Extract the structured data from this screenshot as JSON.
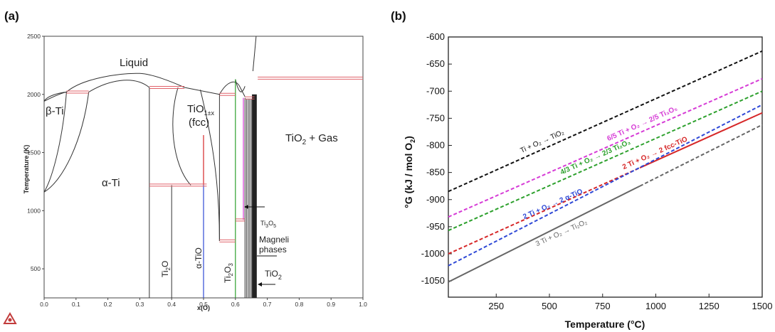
{
  "panel_a": {
    "label": "(a)",
    "x_title": "x(O)",
    "y_title": "Temperature (K)",
    "colors": {
      "boundary": "#333333",
      "invariant": "#e0626a",
      "ti3o5": "#d63bd6",
      "tio2_line": "#2ca02c",
      "tio_line": "#2f49d6",
      "fcc_line": "#d62728"
    },
    "labels": {
      "liquid": "Liquid",
      "beta_ti": "β-Ti",
      "alpha_ti": "α-Ti",
      "tio_fcc_main": "TiO",
      "tio_fcc_sub": "1±x",
      "tio_fcc_note": "(fcc)",
      "tio2_gas_a": "TiO",
      "tio2_gas_b": "2",
      "tio2_gas_c": " + Gas",
      "ti2o_a": "Ti",
      "ti2o_b": "2",
      "ti2o_c": "O",
      "alpha_tio": "α-TiO",
      "ti2o3_a": "Ti",
      "ti2o3_b": "2",
      "ti2o3_c": "O",
      "ti2o3_d": "3",
      "ti3o5_a": "Ti",
      "ti3o5_b": "3",
      "ti3o5_c": "O",
      "ti3o5_d": "5",
      "magneli_1": "Magneli",
      "magneli_2": "phases",
      "tio2_a": "TiO",
      "tio2_b": "2"
    }
  },
  "panel_b": {
    "label": "(b)",
    "x_title": "Temperature (°C)",
    "y_title_a": "°G (kJ / mol O",
    "y_title_b": "2",
    "y_title_c": ")",
    "line_labels": [
      {
        "name": "ti_tio2",
        "text": "Ti + O₂ → TiO₂",
        "color": "#111111"
      },
      {
        "name": "ti3o5",
        "text": "6/5 Ti + O₂ → 2/5 Ti₃O₅",
        "color": "#d63bd6"
      },
      {
        "name": "ti2o3",
        "text": "4/3 Ti + O₂ → 2/3 Ti₂O₃",
        "color": "#2ca02c"
      },
      {
        "name": "fcc_tio",
        "text": "2 Ti + O₂ → 2 fcc-TiO",
        "color": "#d62728"
      },
      {
        "name": "alpha_tio",
        "text": "2 Ti + O₂ → 2 α-TiO",
        "color": "#2f49d6"
      },
      {
        "name": "ti2o",
        "text": "3 Ti + O₂ → Ti₂O₂",
        "color": "#666666"
      }
    ]
  },
  "chart_data": [
    {
      "type": "line",
      "title": "",
      "xlabel": "x(O)",
      "ylabel": "Temperature (K)",
      "xlim": [
        0.0,
        1.0
      ],
      "ylim": [
        250,
        2500
      ],
      "x_ticks": [
        "0.0",
        "0.1",
        "0.2",
        "0.3",
        "0.4",
        "0.5",
        "0.6",
        "0.7",
        "0.8",
        "0.9",
        "1.0"
      ],
      "y_ticks": [
        "500",
        "1000",
        "1500",
        "2000",
        "2500"
      ],
      "series": [
        {
          "name": "liquidus",
          "x": [
            0.0,
            0.07,
            0.15,
            0.3,
            0.33,
            0.42,
            0.55,
            0.58,
            0.6,
            0.62,
            0.64
          ],
          "y": [
            1941,
            2020,
            2100,
            2180,
            2150,
            2050,
            2000,
            2110,
            2130,
            2050,
            1990
          ]
        },
        {
          "name": "beta_alpha_boundary",
          "x": [
            0.0,
            0.02,
            0.05,
            0.08,
            0.14
          ],
          "y": [
            1160,
            1250,
            1500,
            1800,
            2020
          ]
        },
        {
          "name": "invariant_2020",
          "x": [
            0.07,
            0.14
          ],
          "y": [
            2020,
            2020
          ]
        },
        {
          "name": "invariant_2060",
          "x": [
            0.33,
            0.44
          ],
          "y": [
            2060,
            2060
          ]
        },
        {
          "name": "invariant_1220",
          "x": [
            0.33,
            0.51
          ],
          "y": [
            1220,
            1220
          ]
        },
        {
          "name": "invariant_740",
          "x": [
            0.55,
            0.6
          ],
          "y": [
            740,
            740
          ]
        },
        {
          "name": "invariant_2140",
          "x": [
            0.67,
            1.0
          ],
          "y": [
            2140,
            2140
          ]
        },
        {
          "name": "invariant_2000",
          "x": [
            0.55,
            0.6
          ],
          "y": [
            2000,
            2000
          ]
        },
        {
          "name": "invariant_1970",
          "x": [
            0.63,
            0.66
          ],
          "y": [
            1970,
            1970
          ]
        },
        {
          "name": "invariant_920",
          "x": [
            0.6,
            0.63
          ],
          "y": [
            920,
            920
          ]
        }
      ]
    },
    {
      "type": "line",
      "title": "",
      "xlabel": "Temperature (°C)",
      "ylabel": "°G (kJ / mol O2)",
      "xlim": [
        25,
        1500
      ],
      "ylim": [
        -1080,
        -600
      ],
      "x_ticks": [
        "250",
        "500",
        "750",
        "1000",
        "1250",
        "1500"
      ],
      "y_ticks": [
        "-600",
        "-650",
        "-700",
        "-750",
        "-800",
        "-850",
        "-900",
        "-950",
        "-1000",
        "-1050"
      ],
      "series": [
        {
          "name": "Ti + O₂ → TiO₂",
          "x": [
            25,
            1500
          ],
          "y": [
            -885,
            -626
          ]
        },
        {
          "name": "6/5 Ti + O₂ → 2/5 Ti₃O₅",
          "x": [
            25,
            1500
          ],
          "y": [
            -932,
            -677
          ]
        },
        {
          "name": "4/3 Ti + O₂ → 2/3 Ti₂O₃",
          "x": [
            25,
            1500
          ],
          "y": [
            -957,
            -700
          ]
        },
        {
          "name": "2 Ti + O₂ → 2 fcc-TiO",
          "x": [
            25,
            1500
          ],
          "y": [
            -1000,
            -740
          ]
        },
        {
          "name": "2 Ti + O₂ → 2 α-TiO",
          "x": [
            25,
            1500
          ],
          "y": [
            -1022,
            -725
          ]
        },
        {
          "name": "3 Ti + O₂ → Ti₂O₂",
          "x": [
            25,
            1500
          ],
          "y": [
            -1052,
            -762
          ]
        }
      ]
    }
  ]
}
